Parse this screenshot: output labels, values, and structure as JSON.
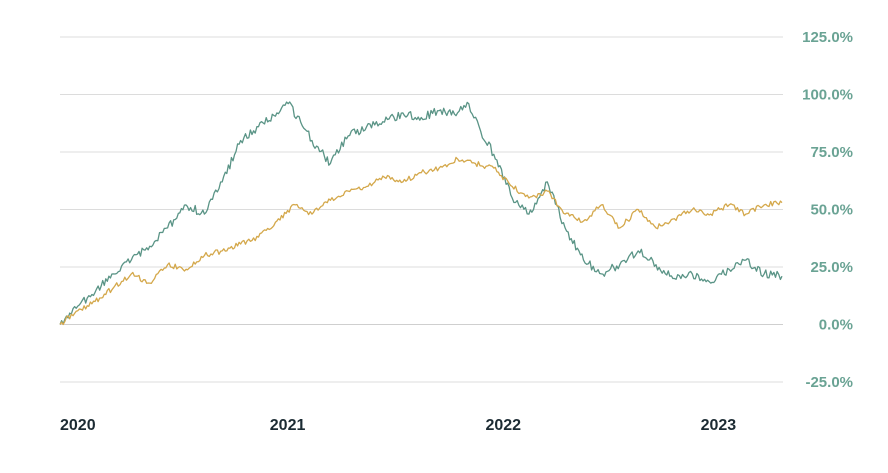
{
  "chart_data": {
    "type": "line",
    "title": "",
    "xlabel": "",
    "ylabel": "",
    "x_ticks": [
      "2020",
      "2021",
      "2022",
      "2023"
    ],
    "y_ticks": [
      "125.0%",
      "100.0%",
      "75.0%",
      "50.0%",
      "25.0%",
      "0.0%",
      "-25.0%"
    ],
    "ylim": [
      -25,
      125
    ],
    "y_unit": "%",
    "grid": true,
    "legend": "none",
    "series": [
      {
        "color": "#5a9486",
        "x": [
          "2020-01-02",
          "2020-02-01",
          "2020-03-01",
          "2020-04-01",
          "2020-05-01",
          "2020-06-01",
          "2020-07-01",
          "2020-08-01",
          "2020-09-01",
          "2020-10-01",
          "2020-11-01",
          "2020-12-01",
          "2021-01-01",
          "2021-01-20",
          "2021-02-10",
          "2021-03-01",
          "2021-04-01",
          "2021-05-01",
          "2021-06-01",
          "2021-07-01",
          "2021-08-01",
          "2021-09-01",
          "2021-10-01",
          "2021-11-01",
          "2021-11-20",
          "2021-12-10",
          "2022-01-01",
          "2022-02-01",
          "2022-03-01",
          "2022-04-01",
          "2022-05-01",
          "2022-06-01",
          "2022-07-01",
          "2022-08-01",
          "2022-09-01",
          "2022-10-01",
          "2022-11-01",
          "2022-12-01",
          "2023-01-01",
          "2023-02-01",
          "2023-03-01",
          "2023-04-01",
          "2023-05-01"
        ],
        "values": [
          0,
          8,
          14,
          22,
          28,
          34,
          42,
          52,
          48,
          62,
          80,
          86,
          92,
          96,
          88,
          80,
          70,
          82,
          86,
          88,
          92,
          90,
          93,
          92,
          96,
          84,
          74,
          55,
          48,
          62,
          42,
          28,
          22,
          26,
          32,
          26,
          20,
          22,
          18,
          24,
          28,
          22,
          21
        ]
      },
      {
        "color": "#d4a84b",
        "x": [
          "2020-01-02",
          "2020-02-01",
          "2020-03-01",
          "2020-04-01",
          "2020-05-01",
          "2020-06-01",
          "2020-07-01",
          "2020-08-01",
          "2020-09-01",
          "2020-10-01",
          "2020-11-01",
          "2020-12-01",
          "2021-01-01",
          "2021-02-01",
          "2021-03-01",
          "2021-04-01",
          "2021-05-01",
          "2021-06-01",
          "2021-07-01",
          "2021-08-01",
          "2021-09-01",
          "2021-10-01",
          "2021-11-01",
          "2021-12-01",
          "2022-01-01",
          "2022-02-01",
          "2022-03-01",
          "2022-04-01",
          "2022-05-01",
          "2022-06-01",
          "2022-07-01",
          "2022-08-01",
          "2022-09-01",
          "2022-10-01",
          "2022-11-01",
          "2022-12-01",
          "2023-01-01",
          "2023-02-01",
          "2023-03-01",
          "2023-04-01",
          "2023-05-01"
        ],
        "values": [
          0,
          6,
          10,
          16,
          22,
          18,
          26,
          24,
          30,
          32,
          35,
          38,
          45,
          52,
          48,
          54,
          58,
          60,
          64,
          62,
          66,
          68,
          72,
          70,
          68,
          60,
          55,
          58,
          48,
          45,
          52,
          42,
          50,
          42,
          46,
          50,
          48,
          52,
          48,
          52,
          53
        ]
      }
    ]
  }
}
